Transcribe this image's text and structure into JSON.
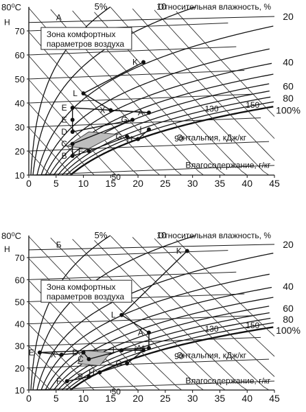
{
  "chart_data": [
    {
      "type": "line",
      "panel": "top",
      "x_ticks": [
        "0",
        "5",
        "10",
        "15",
        "20",
        "25",
        "30",
        "35",
        "40",
        "45"
      ],
      "y_ticks": [
        "10",
        "20",
        "30",
        "40",
        "50",
        "60",
        "70"
      ],
      "y_top_label": "80⁰C",
      "xlim": [
        0,
        45
      ],
      "ylim": [
        10,
        80
      ],
      "rh_label": "Относительная влажность, %",
      "rh_top": [
        "5%",
        "10"
      ],
      "rh_right": [
        "20",
        "40",
        "60",
        "80",
        "100%"
      ],
      "enthalpy_label": "Энтальпия, кДж/кг",
      "enthalpy_values": [
        "50",
        "90",
        "130",
        "150"
      ],
      "moisture_label": "Влагосодержание, г/кг",
      "h_line_label": "Н",
      "h_line_letter": "А",
      "comfort_label_1": "Зона комфортных",
      "comfort_label_2": "параметров воздуха",
      "points": [
        {
          "label": "K",
          "x": 21,
          "y": 57
        },
        {
          "label": "L",
          "x": 10,
          "y": 44
        },
        {
          "label": "X",
          "x": 15,
          "y": 37
        },
        {
          "label": "A",
          "x": 22,
          "y": 36
        },
        {
          "label": "E",
          "x": 8,
          "y": 38
        },
        {
          "label": "E",
          "x": 8,
          "y": 33
        },
        {
          "label": "D",
          "x": 8,
          "y": 28
        },
        {
          "label": "G",
          "x": 19,
          "y": 33
        },
        {
          "label": "C",
          "x": 8,
          "y": 23
        },
        {
          "label": "B",
          "x": 8,
          "y": 18
        },
        {
          "label": "F",
          "x": 11,
          "y": 20
        },
        {
          "label": "G",
          "x": 18,
          "y": 26
        },
        {
          "label": "H",
          "x": 20,
          "y": 25
        },
        {
          "label": "I",
          "x": 22,
          "y": 29
        }
      ]
    },
    {
      "type": "line",
      "panel": "bottom",
      "x_ticks": [
        "0",
        "5",
        "10",
        "15",
        "20",
        "25",
        "30",
        "35",
        "40",
        "45"
      ],
      "y_ticks": [
        "10",
        "20",
        "30",
        "40",
        "50",
        "60",
        "70"
      ],
      "y_top_label": "80⁰C",
      "xlim": [
        0,
        45
      ],
      "ylim": [
        10,
        80
      ],
      "rh_label": "Относительная влажность, %",
      "rh_top": [
        "5%",
        "10"
      ],
      "rh_right": [
        "20",
        "40",
        "60",
        "80",
        "100%"
      ],
      "enthalpy_label": "Энтальпия, кДж/кг",
      "enthalpy_values": [
        "50",
        "90",
        "130",
        "150"
      ],
      "moisture_label": "Влагосодержание, г/кг",
      "h_line_label": "Н",
      "h_line_letter": "Б",
      "comfort_label_1": "Зона комфортных",
      "comfort_label_2": "параметров воздуха",
      "points": [
        {
          "label": "K",
          "x": 29,
          "y": 73
        },
        {
          "label": "L",
          "x": 17,
          "y": 44
        },
        {
          "label": "A",
          "x": 22,
          "y": 36
        },
        {
          "label": "A*",
          "x": 22,
          "y": 29
        },
        {
          "label": "E",
          "x": 2,
          "y": 27
        },
        {
          "label": "X",
          "x": 6,
          "y": 26
        },
        {
          "label": "D",
          "x": 10,
          "y": 27
        },
        {
          "label": "C",
          "x": 11,
          "y": 24
        },
        {
          "label": "I",
          "x": 17,
          "y": 28
        },
        {
          "label": "I",
          "x": 21,
          "y": 28
        },
        {
          "label": "G",
          "x": 18,
          "y": 22
        },
        {
          "label": "H",
          "x": 13,
          "y": 18
        },
        {
          "label": "B",
          "x": 11,
          "y": 16
        },
        {
          "label": "F",
          "x": 7,
          "y": 14
        }
      ]
    }
  ]
}
